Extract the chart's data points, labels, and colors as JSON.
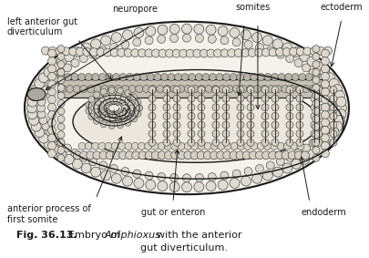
{
  "labels": {
    "left_anterior_gut": "left anterior gut\ndiverticulum",
    "neuropore": "neuropore",
    "somites": "somites",
    "ectoderm": "ectoderm",
    "anterior_process": "anterior process of\nfirst somite",
    "gut_or_enteron": "gut or enteron",
    "endoderm": "endoderm"
  },
  "caption_bold": "Fig. 36.13.",
  "caption_normal1": " Embryo of ",
  "caption_italic": "Amphioxus",
  "caption_normal2": " with the anterior",
  "caption_line2": "gut diverticulum.",
  "bg_color": "#ffffff",
  "line_color": "#1a1a1a",
  "outer_fill": "#f5f2ec",
  "cell_fill": "#e8e4dc",
  "cell_edge": "#2a2a2a",
  "somite_fill": "#dedad2",
  "gut_fill": "#ede9e1",
  "notochord_fill": "#c8c4b8"
}
